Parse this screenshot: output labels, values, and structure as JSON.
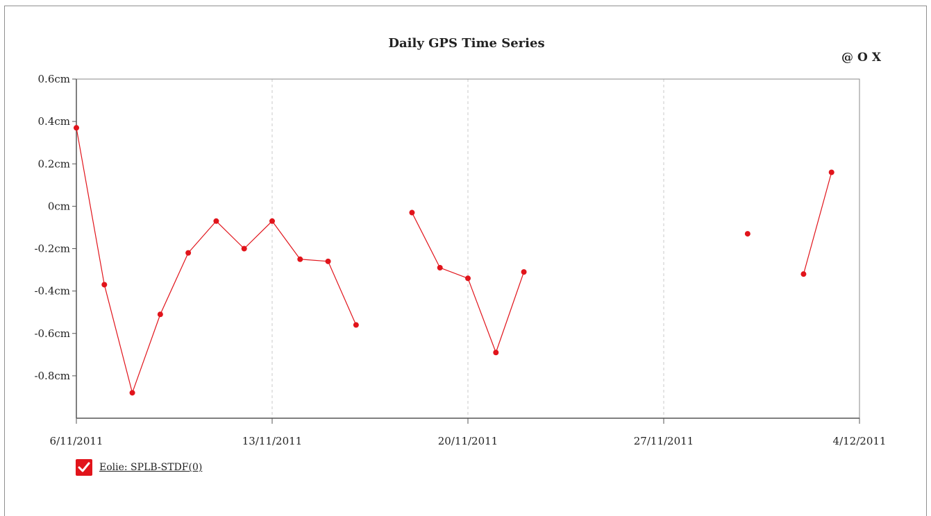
{
  "header": {
    "title": "Daily GPS Time Series",
    "controls": {
      "at_label": "@",
      "o_label": "O",
      "x_label": "X"
    }
  },
  "legend": {
    "label": "Eolie: SPLB-STDF(0)",
    "checked": true,
    "color": "#e1141b"
  },
  "chart_data": {
    "type": "line",
    "title": "Daily GPS Time Series",
    "xlabel": "",
    "ylabel": "",
    "unit": "cm",
    "x_start": "2011-11-06",
    "x_end": "2011-12-04",
    "xlim": [
      "2011-11-06",
      "2011-12-04"
    ],
    "ylim": [
      -1.0,
      0.6
    ],
    "y_ticks": [
      0.6,
      0.4,
      0.2,
      0,
      -0.2,
      -0.4,
      -0.6,
      -0.8
    ],
    "y_tick_labels": [
      "0.6cm",
      "0.4cm",
      "0.2cm",
      "0cm",
      "-0.2cm",
      "-0.4cm",
      "-0.6cm",
      "-0.8cm"
    ],
    "x_ticks": [
      "2011-11-06",
      "2011-11-13",
      "2011-11-20",
      "2011-11-27",
      "2011-12-04"
    ],
    "x_tick_labels": [
      "6/11/2011",
      "13/11/2011",
      "20/11/2011",
      "27/11/2011",
      "4/12/2011"
    ],
    "grid": "vertical dashed at x ticks",
    "legend_position": "bottom-left",
    "series": [
      {
        "name": "Eolie: SPLB-STDF(0)",
        "color": "#e1141b",
        "points": [
          {
            "x": "2011-11-06",
            "y": 0.37
          },
          {
            "x": "2011-11-07",
            "y": -0.37
          },
          {
            "x": "2011-11-08",
            "y": -0.88
          },
          {
            "x": "2011-11-09",
            "y": -0.51
          },
          {
            "x": "2011-11-10",
            "y": -0.22
          },
          {
            "x": "2011-11-11",
            "y": -0.07
          },
          {
            "x": "2011-11-12",
            "y": -0.2
          },
          {
            "x": "2011-11-13",
            "y": -0.07
          },
          {
            "x": "2011-11-14",
            "y": -0.25
          },
          {
            "x": "2011-11-15",
            "y": -0.26
          },
          {
            "x": "2011-11-16",
            "y": -0.56
          },
          {
            "x": "2011-11-17",
            "y": null
          },
          {
            "x": "2011-11-18",
            "y": -0.03
          },
          {
            "x": "2011-11-19",
            "y": -0.29
          },
          {
            "x": "2011-11-20",
            "y": -0.34
          },
          {
            "x": "2011-11-21",
            "y": -0.69
          },
          {
            "x": "2011-11-22",
            "y": -0.31
          },
          {
            "x": "2011-11-23",
            "y": null
          },
          {
            "x": "2011-11-24",
            "y": null
          },
          {
            "x": "2011-11-25",
            "y": null
          },
          {
            "x": "2011-11-26",
            "y": null
          },
          {
            "x": "2011-11-27",
            "y": null
          },
          {
            "x": "2011-11-28",
            "y": null
          },
          {
            "x": "2011-11-29",
            "y": null
          },
          {
            "x": "2011-11-30",
            "y": -0.13
          },
          {
            "x": "2011-12-01",
            "y": null
          },
          {
            "x": "2011-12-02",
            "y": -0.32
          },
          {
            "x": "2011-12-03",
            "y": 0.16
          }
        ]
      }
    ]
  }
}
